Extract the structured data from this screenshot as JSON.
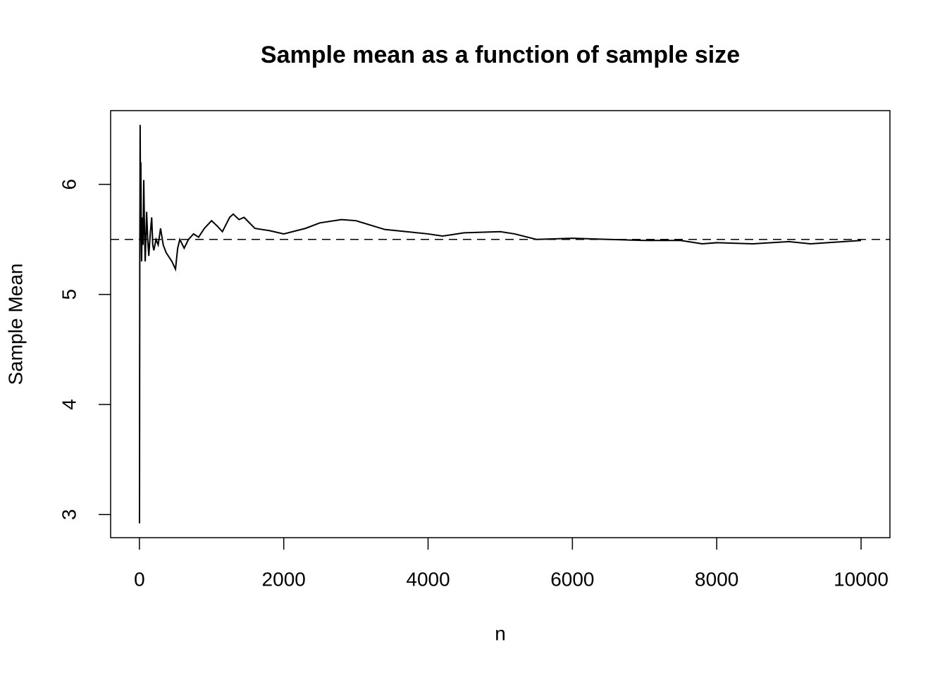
{
  "chart_data": {
    "type": "line",
    "title": "Sample mean as a function of sample size",
    "x_label": "n",
    "y_label": "Sample Mean",
    "x": [
      1,
      3,
      5,
      8,
      10,
      15,
      20,
      25,
      30,
      40,
      50,
      60,
      70,
      80,
      100,
      115,
      130,
      150,
      170,
      185,
      200,
      230,
      260,
      293,
      330,
      370,
      400,
      450,
      500,
      530,
      560,
      620,
      680,
      750,
      820,
      900,
      1000,
      1080,
      1150,
      1250,
      1300,
      1380,
      1450,
      1600,
      1800,
      2000,
      2300,
      2500,
      2800,
      3000,
      3200,
      3400,
      3700,
      4000,
      4200,
      4500,
      5000,
      5200,
      5500,
      6000,
      6500,
      7000,
      7500,
      7800,
      8000,
      8500,
      9000,
      9300,
      10000
    ],
    "values": [
      2.92,
      4.2,
      5.3,
      5.9,
      6.54,
      5.8,
      6.2,
      5.6,
      5.3,
      5.7,
      5.45,
      6.04,
      5.6,
      5.3,
      5.75,
      5.5,
      5.35,
      5.55,
      5.7,
      5.45,
      5.4,
      5.5,
      5.45,
      5.6,
      5.45,
      5.38,
      5.35,
      5.3,
      5.23,
      5.42,
      5.5,
      5.42,
      5.5,
      5.55,
      5.52,
      5.6,
      5.67,
      5.62,
      5.57,
      5.7,
      5.73,
      5.68,
      5.7,
      5.6,
      5.58,
      5.55,
      5.6,
      5.65,
      5.68,
      5.67,
      5.63,
      5.59,
      5.57,
      5.55,
      5.53,
      5.56,
      5.57,
      5.55,
      5.5,
      5.51,
      5.5,
      5.49,
      5.49,
      5.46,
      5.47,
      5.46,
      5.48,
      5.46,
      5.49
    ],
    "color": "#000000",
    "hline": 5.5,
    "xlim": [
      -399,
      10400
    ],
    "xticks": [
      0,
      2000,
      4000,
      6000,
      8000,
      10000
    ],
    "ylim": [
      2.79,
      6.67
    ],
    "yticks": [
      3,
      4,
      5,
      6
    ]
  }
}
